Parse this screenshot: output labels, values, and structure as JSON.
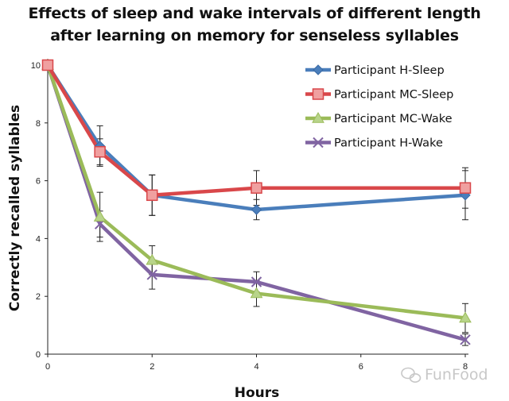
{
  "chart_data": {
    "type": "line",
    "title_line1": "Effects of sleep and wake intervals of different length",
    "title_line2": "after learning on memory for senseless syllables",
    "xlabel": "Hours",
    "ylabel": "Correctly recalled syllables",
    "xlim": [
      0,
      8
    ],
    "ylim": [
      0,
      10
    ],
    "xticks": [
      0,
      2,
      4,
      6,
      8
    ],
    "yticks": [
      0,
      2,
      4,
      6,
      8,
      10
    ],
    "legend_position": "top-right",
    "series": [
      {
        "name": "Participant H-Sleep",
        "color": "#4a7ebb",
        "marker": "diamond",
        "x": [
          0,
          1,
          2,
          4,
          8
        ],
        "y": [
          10,
          7.2,
          5.5,
          5.0,
          5.5
        ],
        "err": [
          0,
          0.7,
          0.7,
          0.35,
          0.85
        ]
      },
      {
        "name": "Participant MC-Sleep",
        "color": "#d9474a",
        "marker": "square",
        "x": [
          0,
          1,
          2,
          4,
          8
        ],
        "y": [
          10,
          7.0,
          5.5,
          5.75,
          5.75
        ],
        "err": [
          0,
          0.45,
          0.7,
          0.6,
          0.7
        ]
      },
      {
        "name": "Participant MC-Wake",
        "color": "#9bbb59",
        "marker": "triangle",
        "x": [
          0,
          1,
          2,
          4,
          8
        ],
        "y": [
          10,
          4.75,
          3.25,
          2.1,
          1.25
        ],
        "err": [
          0,
          0.85,
          0.5,
          0.45,
          0.5
        ]
      },
      {
        "name": "Participant H-Wake",
        "color": "#8064a2",
        "marker": "x",
        "x": [
          0,
          1,
          2,
          4,
          8
        ],
        "y": [
          10,
          4.5,
          2.75,
          2.5,
          0.5
        ],
        "err": [
          0,
          0.45,
          0.5,
          0.35,
          0.2
        ]
      }
    ]
  },
  "watermark": "FunFood"
}
